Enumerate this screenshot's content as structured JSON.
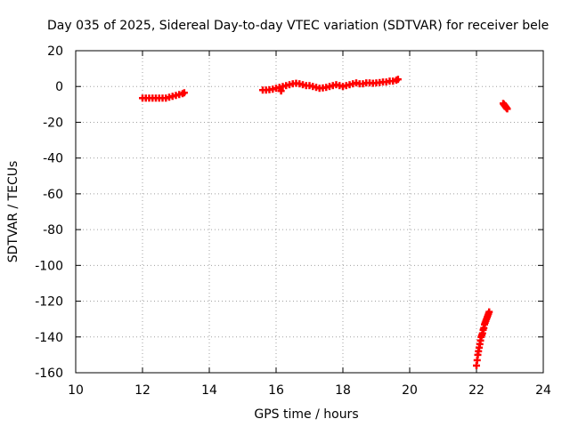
{
  "chart_data": {
    "type": "scatter",
    "title": "Day 035 of 2025, Sidereal Day-to-day VTEC variation (SDTVAR) for receiver bele",
    "xlabel": "GPS time / hours",
    "ylabel": "SDTVAR / TECUs",
    "xlim": [
      10,
      24
    ],
    "ylim": [
      -160,
      20
    ],
    "xticks": [
      10,
      12,
      14,
      16,
      18,
      20,
      22,
      24
    ],
    "yticks": [
      20,
      0,
      -20,
      -40,
      -60,
      -80,
      -100,
      -120,
      -140,
      -160
    ],
    "grid": true,
    "marker": "+",
    "color": "#ff0000",
    "series": [
      {
        "x": [
          12.0,
          12.1,
          12.2,
          12.3,
          12.4,
          12.5,
          12.6,
          12.7,
          12.8,
          12.9,
          13.0,
          13.1,
          13.2,
          13.25
        ],
        "y": [
          -6.5,
          -6.5,
          -6.5,
          -6.5,
          -6.5,
          -6.5,
          -6.5,
          -6.5,
          -6.0,
          -5.5,
          -5.0,
          -4.5,
          -4.0,
          -3.5
        ]
      },
      {
        "x": [
          15.6,
          15.7,
          15.8,
          15.9,
          16.0,
          16.1,
          16.15,
          16.2,
          16.3,
          16.4,
          16.5,
          16.6,
          16.7,
          16.8,
          16.9,
          17.0,
          17.1,
          17.2,
          17.3,
          17.4,
          17.5,
          17.6,
          17.7,
          17.8,
          17.9,
          18.0,
          18.1,
          18.2,
          18.3,
          18.4,
          18.5,
          18.6,
          18.7,
          18.8,
          18.9,
          19.0,
          19.1,
          19.2,
          19.3,
          19.4,
          19.5,
          19.6,
          19.65
        ],
        "y": [
          -2.0,
          -2.0,
          -1.8,
          -1.5,
          -1.0,
          -0.5,
          -2.5,
          0.0,
          0.5,
          1.0,
          1.5,
          1.8,
          1.5,
          1.0,
          0.5,
          0.5,
          0.0,
          -0.5,
          -1.0,
          -0.8,
          -0.5,
          0.0,
          0.5,
          1.0,
          0.5,
          0.0,
          0.5,
          1.0,
          1.5,
          2.0,
          1.5,
          1.5,
          2.0,
          2.0,
          1.8,
          2.0,
          2.2,
          2.5,
          2.5,
          3.0,
          3.0,
          3.5,
          4.0
        ]
      },
      {
        "x": [
          22.0,
          22.02,
          22.04,
          22.06,
          22.08,
          22.1,
          22.12,
          22.14,
          22.16,
          22.18,
          22.2,
          22.22,
          22.24,
          22.26,
          22.28,
          22.3,
          22.32,
          22.34,
          22.36,
          22.38
        ],
        "y": [
          -156,
          -153,
          -150,
          -148,
          -146,
          -144,
          -142,
          -140,
          -139,
          -138,
          -136,
          -135,
          -133,
          -132,
          -131,
          -130,
          -129,
          -128,
          -127,
          -126
        ]
      },
      {
        "x": [
          22.8,
          22.82,
          22.84,
          22.86,
          22.88,
          22.9,
          22.92
        ],
        "y": [
          -9.5,
          -10.0,
          -10.5,
          -11.0,
          -11.5,
          -12.0,
          -12.5
        ]
      }
    ]
  }
}
